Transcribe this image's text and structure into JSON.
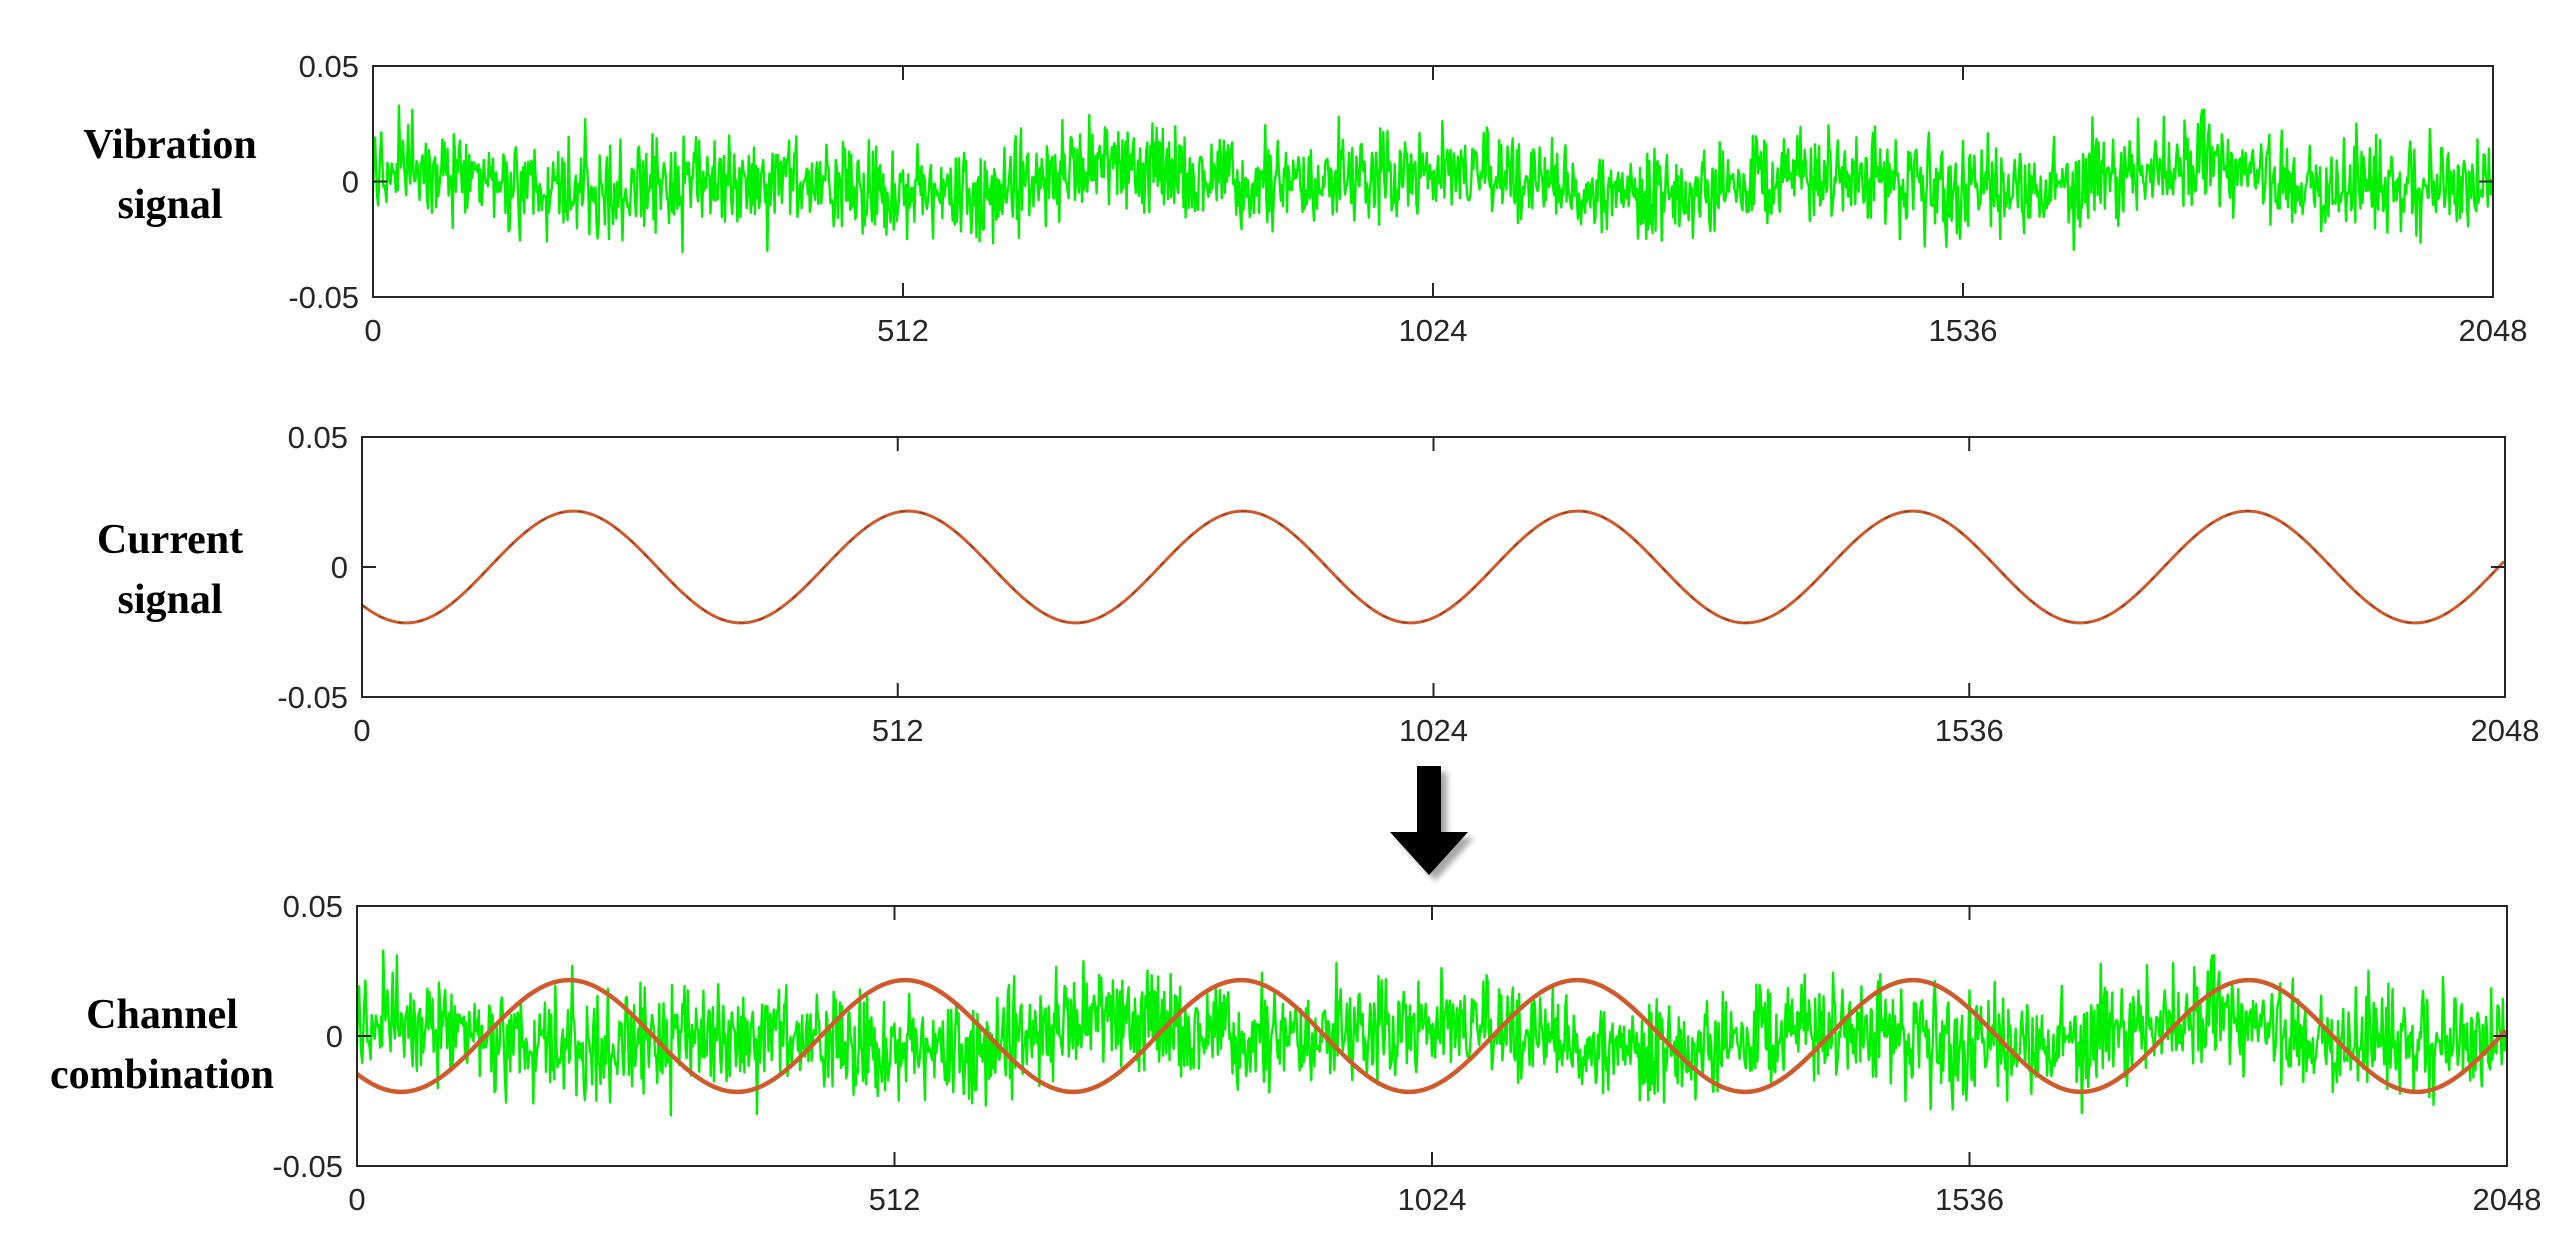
{
  "panels": [
    {
      "label_line1": "Vibration",
      "label_line2": "signal"
    },
    {
      "label_line1": "Current",
      "label_line2": "signal"
    },
    {
      "label_line1": "Channel",
      "label_line2": "combination"
    }
  ],
  "arrow_icon": "down-arrow-icon",
  "colors": {
    "vibration": "#00f000",
    "current": "#cf5a2c",
    "current_dark": "#8a2e12",
    "axis": "#262626",
    "tick_text": "#262626"
  },
  "chart_data": [
    {
      "type": "line",
      "title": "",
      "xlabel": "",
      "ylabel": "",
      "xlim": [
        0,
        2048
      ],
      "ylim": [
        -0.05,
        0.05
      ],
      "xticks": [
        0,
        512,
        1024,
        1536,
        2048
      ],
      "xtick_labels": [
        "0",
        "512",
        "1024",
        "1536",
        "2048"
      ],
      "yticks": [
        0.05,
        0,
        -0.05
      ],
      "ytick_labels": [
        "0.05",
        "0",
        "-0.05"
      ],
      "series": [
        {
          "kind": "noise",
          "num_samples": 2048,
          "mean": 0.0,
          "std": 0.012,
          "min": -0.047,
          "max": 0.046,
          "slow_wander_amplitude": 0.007
        }
      ]
    },
    {
      "type": "line",
      "title": "",
      "xlabel": "",
      "ylabel": "",
      "xlim": [
        0,
        2048
      ],
      "ylim": [
        -0.05,
        0.05
      ],
      "xticks": [
        0,
        512,
        1024,
        1536,
        2048
      ],
      "xtick_labels": [
        "0",
        "512",
        "1024",
        "1536",
        "2048"
      ],
      "yticks": [
        0.05,
        0,
        -0.05
      ],
      "ytick_labels": [
        "0.05",
        "0",
        "-0.05"
      ],
      "series": [
        {
          "kind": "sine",
          "amplitude": 0.0215,
          "period": 320,
          "first_peak_x": 202,
          "num_samples": 2048
        }
      ]
    },
    {
      "type": "line",
      "title": "",
      "xlabel": "",
      "ylabel": "",
      "xlim": [
        0,
        2048
      ],
      "ylim": [
        -0.05,
        0.05
      ],
      "xticks": [
        0,
        512,
        1024,
        1536,
        2048
      ],
      "xtick_labels": [
        "0",
        "512",
        "1024",
        "1536",
        "2048"
      ],
      "yticks": [
        0.05,
        0,
        -0.05
      ],
      "ytick_labels": [
        "0.05",
        "0",
        "-0.05"
      ],
      "series": [
        {
          "kind": "noise",
          "same_as_panel": 0
        },
        {
          "kind": "sine",
          "same_as_panel": 1
        }
      ]
    }
  ]
}
